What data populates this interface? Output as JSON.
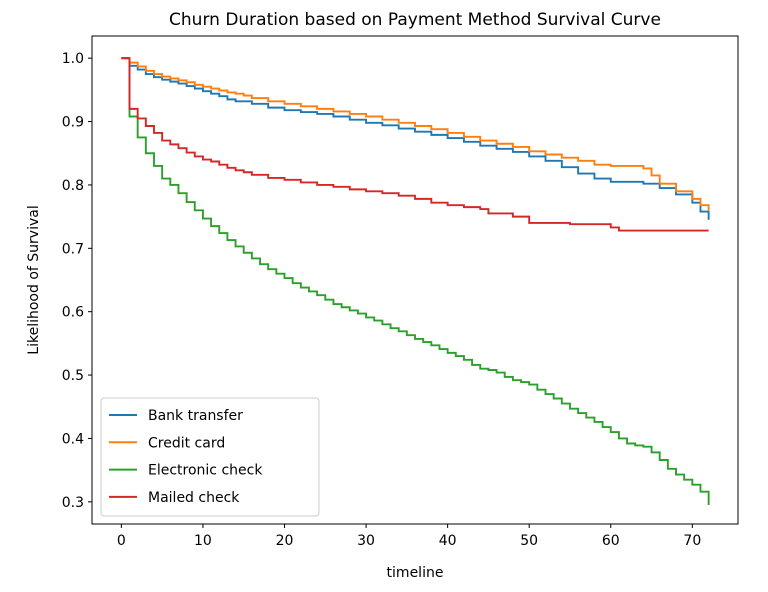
{
  "chart_data": {
    "type": "line",
    "step": true,
    "title": "Churn Duration based on Payment Method Survival Curve",
    "xlabel": "timeline",
    "ylabel": "Likelihood of Survival",
    "xlim": [
      -3.6,
      75.6
    ],
    "ylim": [
      0.265,
      1.035
    ],
    "xticks": [
      0,
      10,
      20,
      30,
      40,
      50,
      60,
      70
    ],
    "yticks": [
      0.3,
      0.4,
      0.5,
      0.6,
      0.7,
      0.8,
      0.9,
      1.0
    ],
    "ytick_labels": [
      "0.3",
      "0.4",
      "0.5",
      "0.6",
      "0.7",
      "0.8",
      "0.9",
      "1.0"
    ],
    "grid": false,
    "legend_position": "lower-left",
    "series": [
      {
        "name": "Bank transfer",
        "color": "#1f77b4",
        "points": [
          [
            0,
            1.0
          ],
          [
            1,
            0.988
          ],
          [
            2,
            0.982
          ],
          [
            3,
            0.975
          ],
          [
            4,
            0.97
          ],
          [
            5,
            0.966
          ],
          [
            6,
            0.963
          ],
          [
            7,
            0.96
          ],
          [
            8,
            0.956
          ],
          [
            9,
            0.952
          ],
          [
            10,
            0.948
          ],
          [
            11,
            0.944
          ],
          [
            12,
            0.94
          ],
          [
            13,
            0.935
          ],
          [
            14,
            0.932
          ],
          [
            16,
            0.928
          ],
          [
            18,
            0.922
          ],
          [
            20,
            0.918
          ],
          [
            22,
            0.915
          ],
          [
            24,
            0.912
          ],
          [
            26,
            0.908
          ],
          [
            28,
            0.903
          ],
          [
            30,
            0.898
          ],
          [
            32,
            0.894
          ],
          [
            34,
            0.889
          ],
          [
            36,
            0.884
          ],
          [
            38,
            0.879
          ],
          [
            40,
            0.874
          ],
          [
            42,
            0.868
          ],
          [
            44,
            0.862
          ],
          [
            46,
            0.857
          ],
          [
            48,
            0.852
          ],
          [
            50,
            0.845
          ],
          [
            52,
            0.838
          ],
          [
            54,
            0.828
          ],
          [
            56,
            0.818
          ],
          [
            58,
            0.81
          ],
          [
            60,
            0.805
          ],
          [
            62,
            0.805
          ],
          [
            64,
            0.802
          ],
          [
            66,
            0.795
          ],
          [
            68,
            0.785
          ],
          [
            70,
            0.772
          ],
          [
            71,
            0.758
          ],
          [
            72,
            0.745
          ]
        ]
      },
      {
        "name": "Credit card",
        "color": "#ff7f0e",
        "points": [
          [
            0,
            1.0
          ],
          [
            1,
            0.993
          ],
          [
            2,
            0.987
          ],
          [
            3,
            0.98
          ],
          [
            4,
            0.975
          ],
          [
            5,
            0.971
          ],
          [
            6,
            0.968
          ],
          [
            7,
            0.965
          ],
          [
            8,
            0.962
          ],
          [
            9,
            0.958
          ],
          [
            10,
            0.955
          ],
          [
            11,
            0.952
          ],
          [
            12,
            0.949
          ],
          [
            13,
            0.946
          ],
          [
            14,
            0.944
          ],
          [
            15,
            0.941
          ],
          [
            16,
            0.937
          ],
          [
            18,
            0.932
          ],
          [
            20,
            0.928
          ],
          [
            22,
            0.924
          ],
          [
            24,
            0.92
          ],
          [
            26,
            0.916
          ],
          [
            28,
            0.912
          ],
          [
            30,
            0.908
          ],
          [
            32,
            0.903
          ],
          [
            34,
            0.898
          ],
          [
            36,
            0.893
          ],
          [
            38,
            0.888
          ],
          [
            40,
            0.882
          ],
          [
            42,
            0.876
          ],
          [
            44,
            0.87
          ],
          [
            46,
            0.865
          ],
          [
            48,
            0.86
          ],
          [
            50,
            0.853
          ],
          [
            52,
            0.848
          ],
          [
            54,
            0.843
          ],
          [
            56,
            0.838
          ],
          [
            58,
            0.832
          ],
          [
            60,
            0.83
          ],
          [
            62,
            0.83
          ],
          [
            64,
            0.826
          ],
          [
            65,
            0.815
          ],
          [
            66,
            0.802
          ],
          [
            68,
            0.79
          ],
          [
            70,
            0.778
          ],
          [
            71,
            0.768
          ],
          [
            72,
            0.76
          ]
        ]
      },
      {
        "name": "Electronic check",
        "color": "#2ca02c",
        "points": [
          [
            0,
            1.0
          ],
          [
            1,
            0.908
          ],
          [
            2,
            0.875
          ],
          [
            3,
            0.85
          ],
          [
            4,
            0.83
          ],
          [
            5,
            0.81
          ],
          [
            6,
            0.8
          ],
          [
            7,
            0.787
          ],
          [
            8,
            0.773
          ],
          [
            9,
            0.76
          ],
          [
            10,
            0.747
          ],
          [
            11,
            0.735
          ],
          [
            12,
            0.724
          ],
          [
            13,
            0.713
          ],
          [
            14,
            0.703
          ],
          [
            15,
            0.693
          ],
          [
            16,
            0.684
          ],
          [
            17,
            0.675
          ],
          [
            18,
            0.667
          ],
          [
            19,
            0.66
          ],
          [
            20,
            0.653
          ],
          [
            21,
            0.645
          ],
          [
            22,
            0.638
          ],
          [
            23,
            0.632
          ],
          [
            24,
            0.626
          ],
          [
            25,
            0.619
          ],
          [
            26,
            0.612
          ],
          [
            27,
            0.607
          ],
          [
            28,
            0.602
          ],
          [
            29,
            0.597
          ],
          [
            30,
            0.591
          ],
          [
            31,
            0.586
          ],
          [
            32,
            0.58
          ],
          [
            33,
            0.574
          ],
          [
            34,
            0.569
          ],
          [
            35,
            0.563
          ],
          [
            36,
            0.557
          ],
          [
            37,
            0.552
          ],
          [
            38,
            0.547
          ],
          [
            39,
            0.541
          ],
          [
            40,
            0.535
          ],
          [
            41,
            0.53
          ],
          [
            42,
            0.524
          ],
          [
            43,
            0.516
          ],
          [
            44,
            0.51
          ],
          [
            45,
            0.508
          ],
          [
            46,
            0.504
          ],
          [
            47,
            0.497
          ],
          [
            48,
            0.492
          ],
          [
            49,
            0.489
          ],
          [
            50,
            0.485
          ],
          [
            51,
            0.477
          ],
          [
            52,
            0.47
          ],
          [
            53,
            0.463
          ],
          [
            54,
            0.455
          ],
          [
            55,
            0.447
          ],
          [
            56,
            0.44
          ],
          [
            57,
            0.433
          ],
          [
            58,
            0.426
          ],
          [
            59,
            0.418
          ],
          [
            60,
            0.41
          ],
          [
            61,
            0.4
          ],
          [
            62,
            0.392
          ],
          [
            63,
            0.389
          ],
          [
            64,
            0.387
          ],
          [
            65,
            0.378
          ],
          [
            66,
            0.366
          ],
          [
            67,
            0.352
          ],
          [
            68,
            0.343
          ],
          [
            69,
            0.335
          ],
          [
            70,
            0.327
          ],
          [
            71,
            0.316
          ],
          [
            72,
            0.295
          ]
        ]
      },
      {
        "name": "Mailed check",
        "color": "#d62728",
        "points": [
          [
            0,
            1.0
          ],
          [
            0.7,
            1.0
          ],
          [
            1,
            0.92
          ],
          [
            2,
            0.905
          ],
          [
            3,
            0.893
          ],
          [
            4,
            0.882
          ],
          [
            5,
            0.87
          ],
          [
            6,
            0.864
          ],
          [
            7,
            0.858
          ],
          [
            8,
            0.851
          ],
          [
            9,
            0.845
          ],
          [
            10,
            0.84
          ],
          [
            11,
            0.837
          ],
          [
            12,
            0.832
          ],
          [
            13,
            0.827
          ],
          [
            14,
            0.823
          ],
          [
            15,
            0.82
          ],
          [
            16,
            0.816
          ],
          [
            18,
            0.811
          ],
          [
            20,
            0.808
          ],
          [
            22,
            0.804
          ],
          [
            24,
            0.8
          ],
          [
            26,
            0.797
          ],
          [
            28,
            0.793
          ],
          [
            30,
            0.79
          ],
          [
            32,
            0.787
          ],
          [
            34,
            0.783
          ],
          [
            36,
            0.778
          ],
          [
            38,
            0.772
          ],
          [
            40,
            0.768
          ],
          [
            42,
            0.765
          ],
          [
            44,
            0.762
          ],
          [
            45,
            0.755
          ],
          [
            48,
            0.75
          ],
          [
            50,
            0.74
          ],
          [
            55,
            0.738
          ],
          [
            60,
            0.733
          ],
          [
            61,
            0.728
          ],
          [
            72,
            0.728
          ]
        ]
      }
    ]
  }
}
